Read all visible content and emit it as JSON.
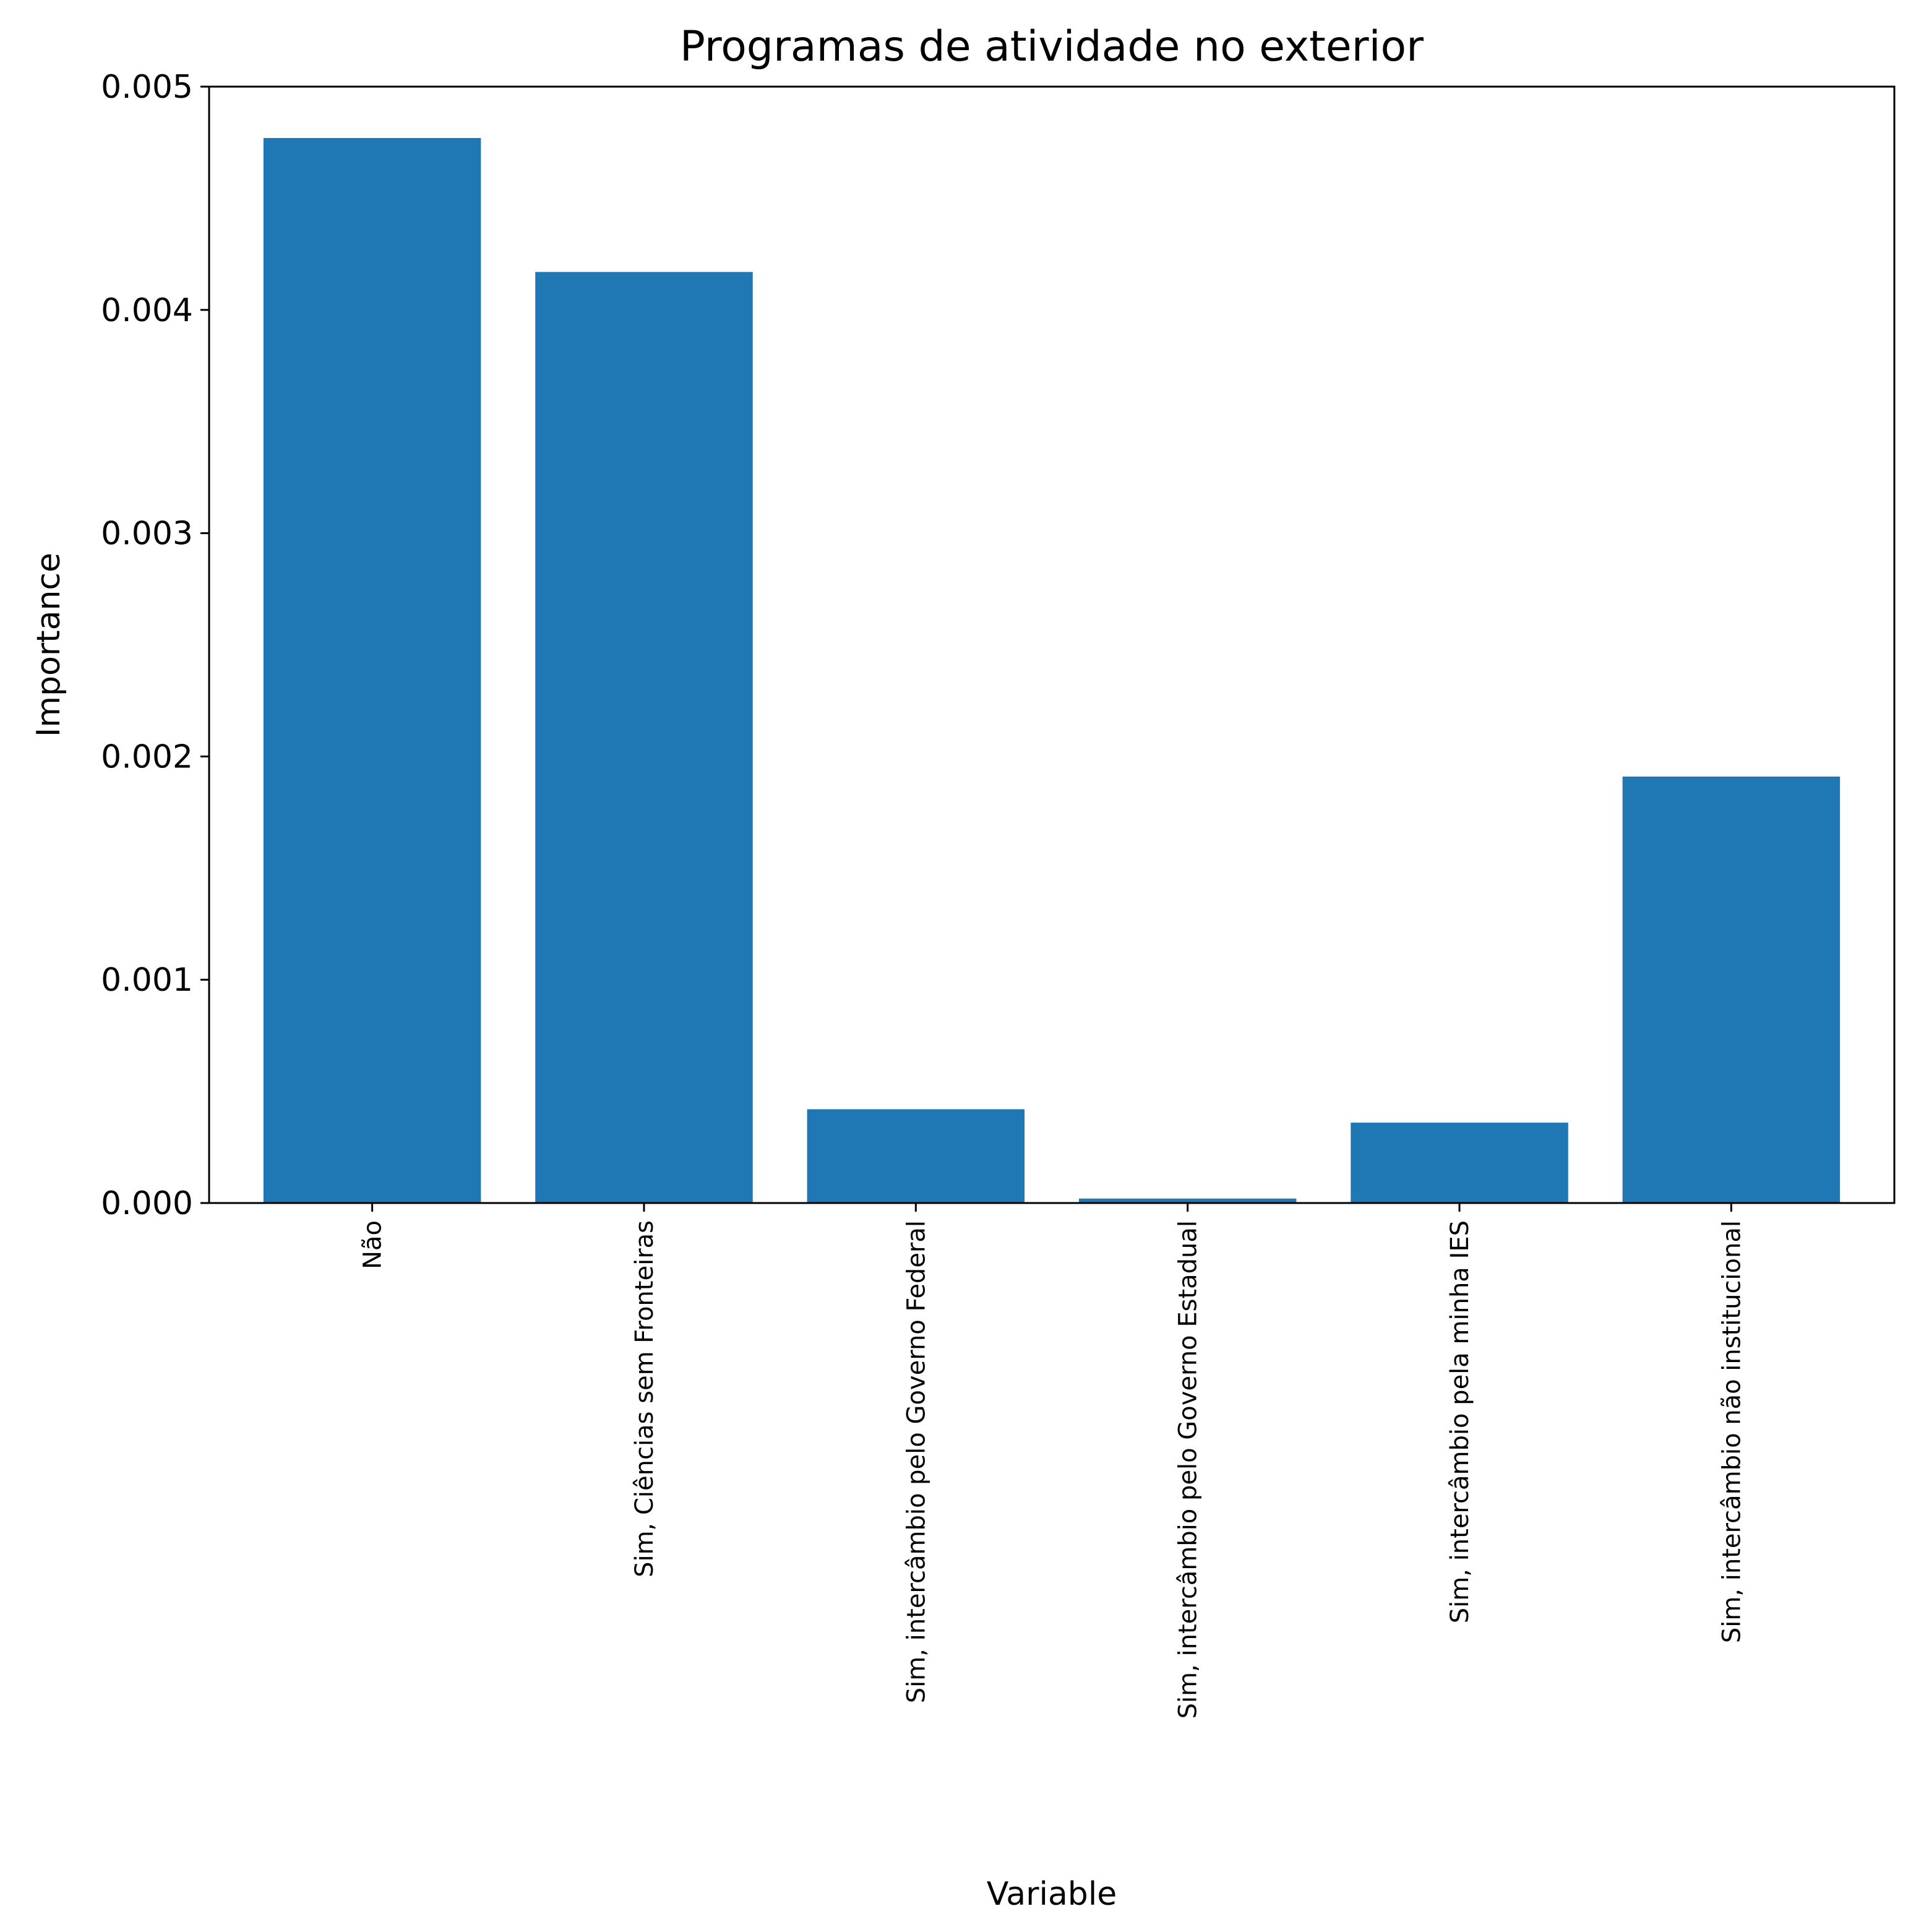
{
  "chart_data": {
    "type": "bar",
    "title": "Programas de atividade no exterior",
    "xlabel": "Variable",
    "ylabel": "Importance",
    "categories": [
      "Não",
      "Sim, Ciências sem Fronteiras",
      "Sim, intercâmbio pelo Governo Federal",
      "Sim, intercâmbio pelo Governo Estadual",
      "Sim, intercâmbio pela minha IES",
      "Sim, intercâmbio não institucional"
    ],
    "values": [
      0.00477,
      0.00417,
      0.00042,
      2e-05,
      0.00036,
      0.00191
    ],
    "ylim": [
      0,
      0.005
    ],
    "yticks": [
      0.0,
      0.001,
      0.002,
      0.003,
      0.004,
      0.005
    ],
    "ytick_labels": [
      "0.000",
      "0.001",
      "0.002",
      "0.003",
      "0.004",
      "0.005"
    ],
    "bar_color": "#1f77b4",
    "grid": false,
    "legend": "none"
  }
}
